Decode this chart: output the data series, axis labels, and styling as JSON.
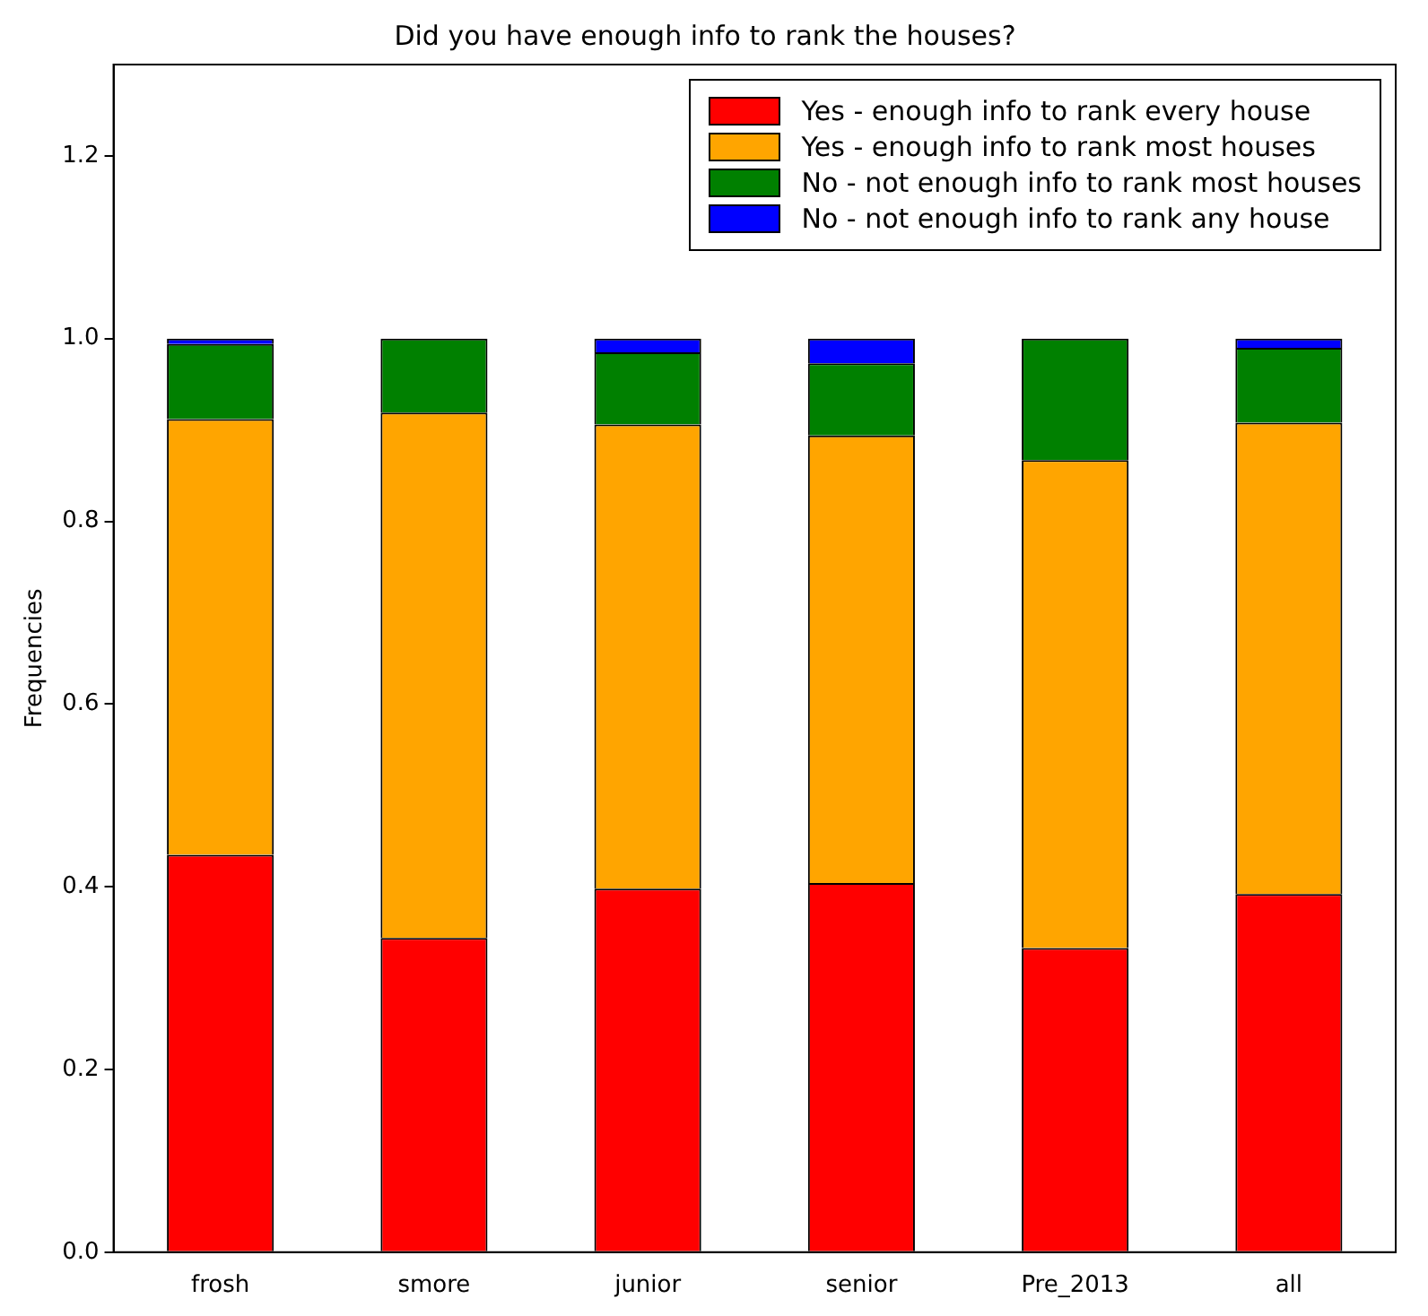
{
  "chart_data": {
    "type": "bar",
    "title": "Did you have enough info to rank the houses?",
    "ylabel": "Frequencies",
    "stacked": true,
    "legend": "top right",
    "grid": false,
    "categories": [
      "frosh",
      "smore",
      "junior",
      "senior",
      "Pre_2013",
      "all"
    ],
    "series": [
      {
        "name": "Yes - enough info to rank every house",
        "color": "#ff0000",
        "values": [
          0.435,
          0.344,
          0.398,
          0.404,
          0.333,
          0.392
        ]
      },
      {
        "name": "Yes - enough info to rank most houses",
        "color": "#ffa500",
        "values": [
          0.477,
          0.575,
          0.508,
          0.49,
          0.534,
          0.516
        ]
      },
      {
        "name": "No - not enough info to rank most houses",
        "color": "#008000",
        "values": [
          0.082,
          0.081,
          0.079,
          0.079,
          0.133,
          0.082
        ]
      },
      {
        "name": "No - not enough info to rank any house",
        "color": "#0000ff",
        "values": [
          0.006,
          0,
          0.015,
          0.027,
          0,
          0.01
        ]
      }
    ],
    "ylim": [
      0,
      1.3
    ],
    "yticks": [
      {
        "value": 0,
        "label": "0.0"
      },
      {
        "value": 0.2,
        "label": "0.2"
      },
      {
        "value": 0.4,
        "label": "0.4"
      },
      {
        "value": 0.6,
        "label": "0.6"
      },
      {
        "value": 0.8,
        "label": "0.8"
      },
      {
        "value": 1,
        "label": "1.0"
      },
      {
        "value": 1.2,
        "label": "1.2"
      }
    ]
  }
}
